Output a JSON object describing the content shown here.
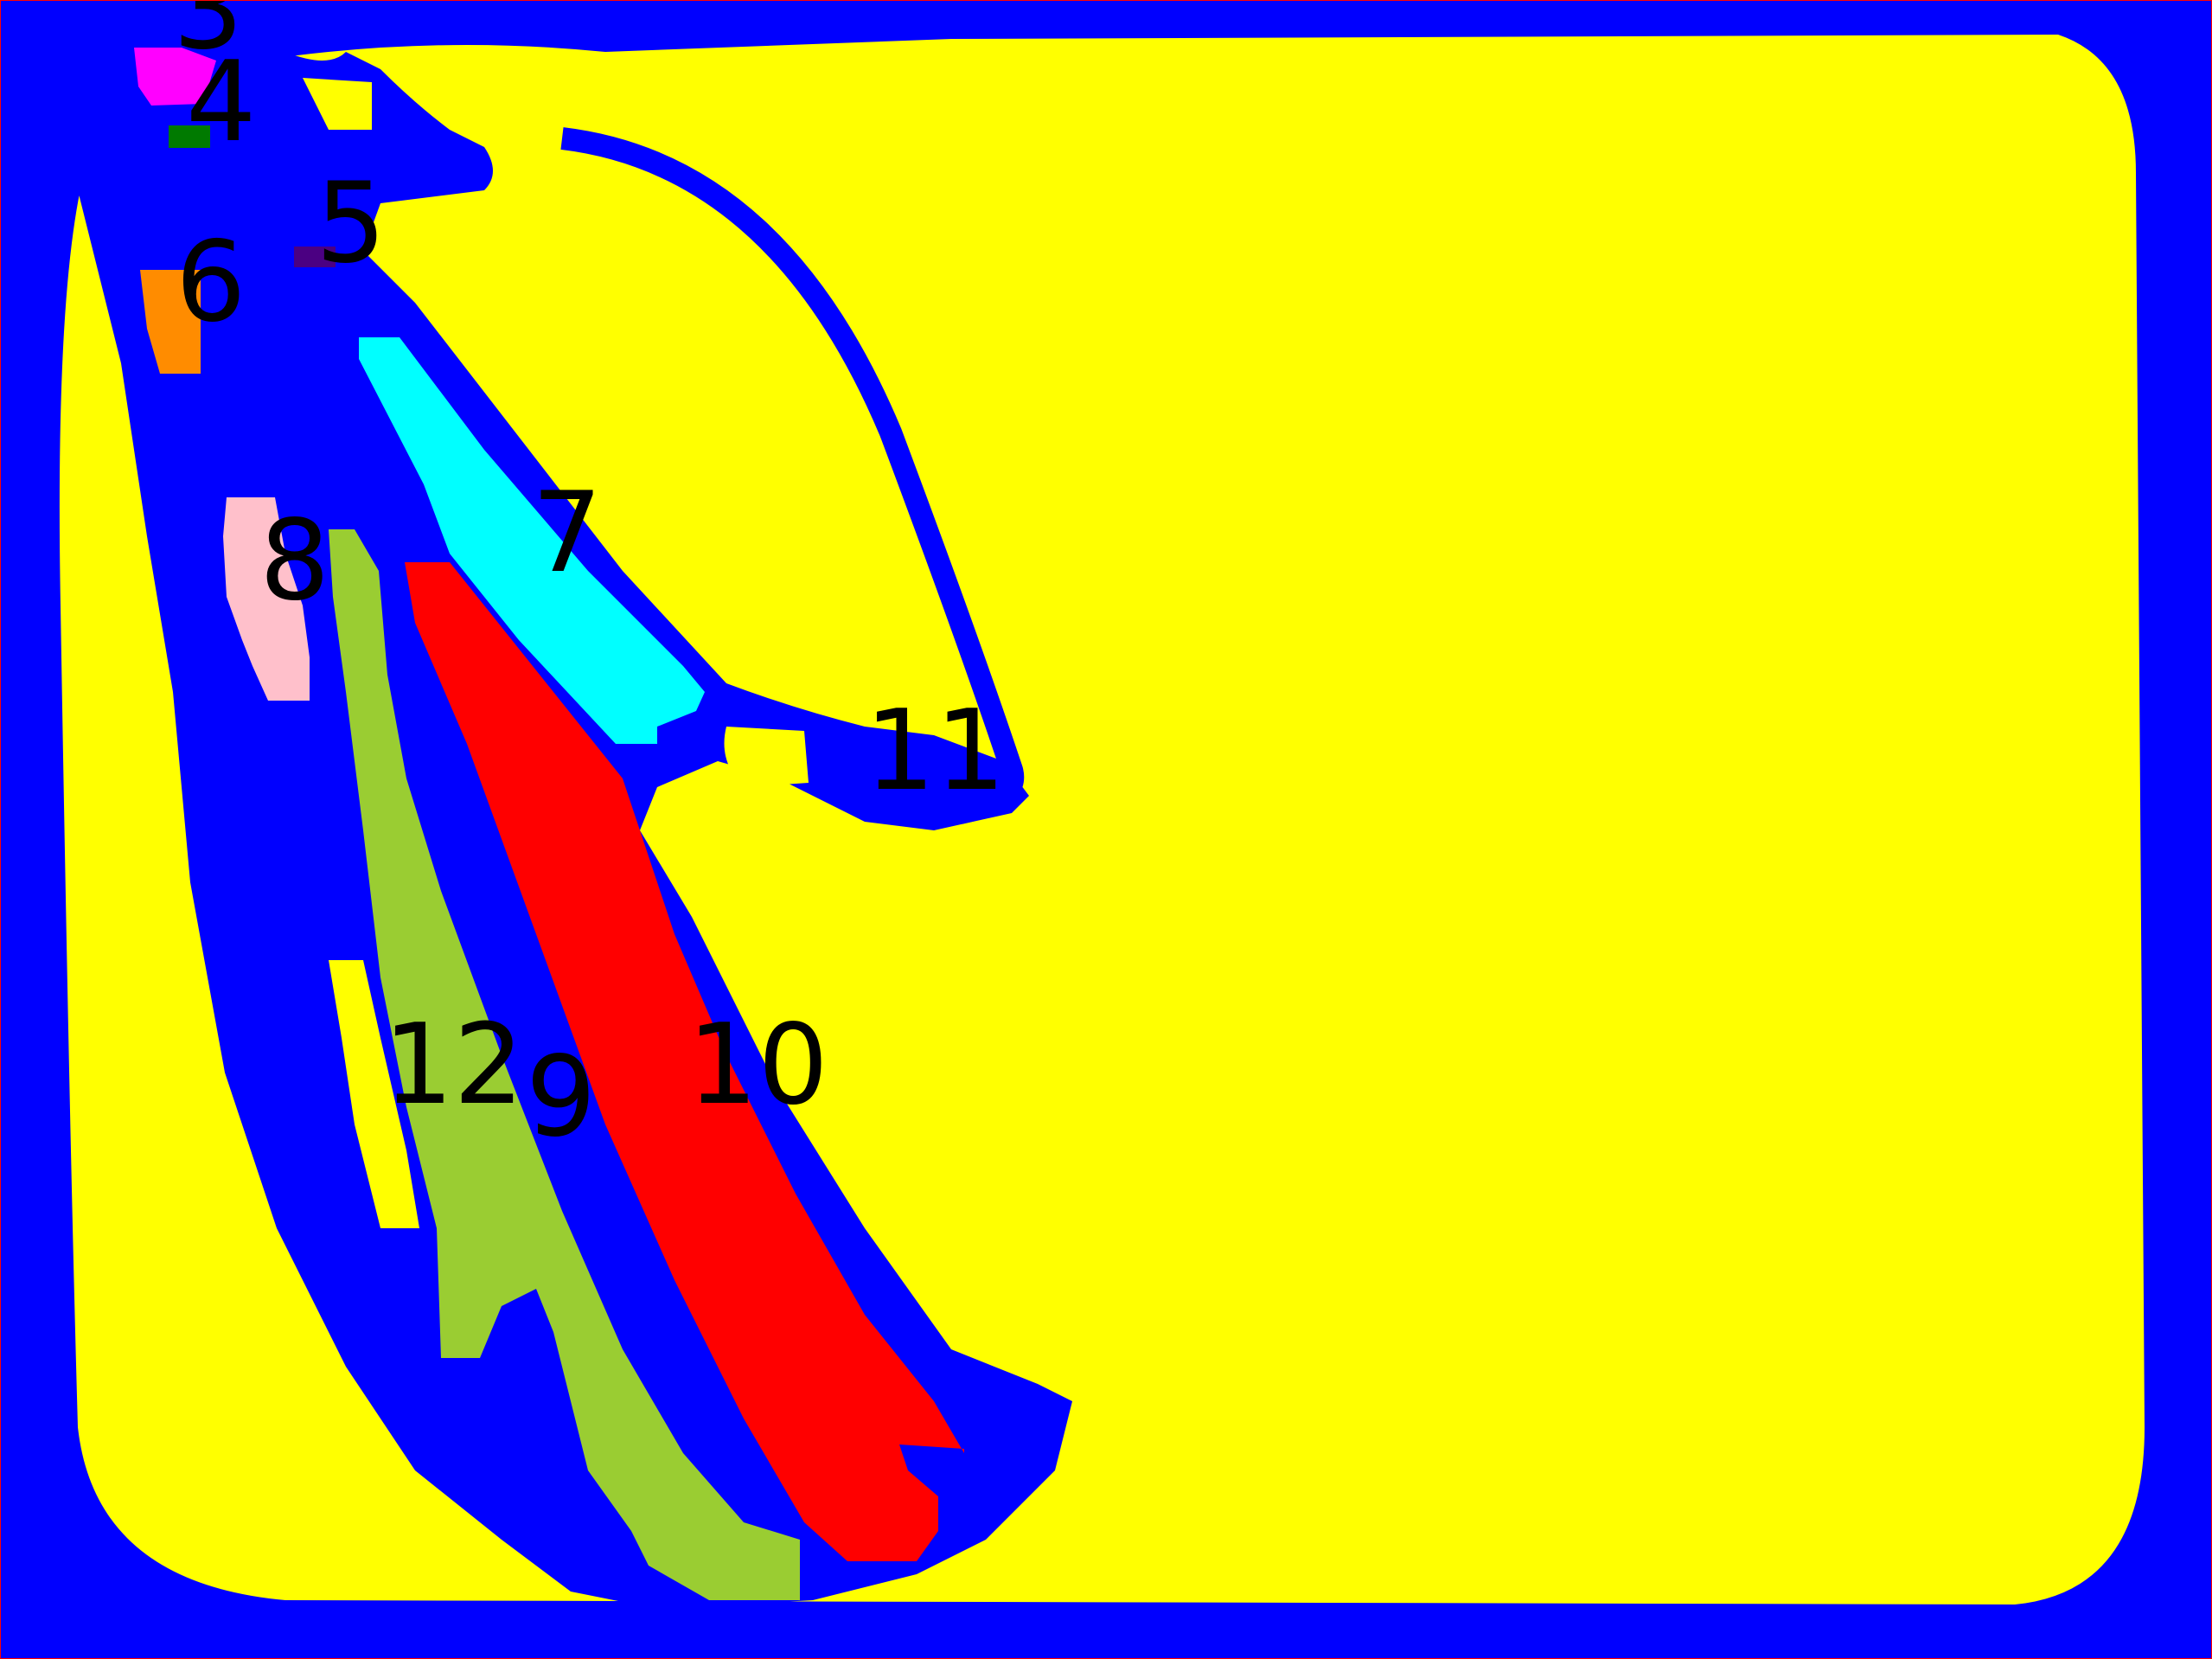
{
  "figure": {
    "type": "segmentation-map",
    "colors": {
      "background": "#ffff00",
      "outline": "#0000ff",
      "frame": "#ff0000"
    }
  },
  "regions": [
    {
      "id": "3",
      "label": "3",
      "color": "#ff00ff"
    },
    {
      "id": "4",
      "label": "4",
      "color": "#007a00"
    },
    {
      "id": "5",
      "label": "5",
      "color": "#4b0082"
    },
    {
      "id": "6",
      "label": "6",
      "color": "#ff8c00"
    },
    {
      "id": "7",
      "label": "7",
      "color": "#00ffff"
    },
    {
      "id": "8",
      "label": "8",
      "color": "#ffc0cb"
    },
    {
      "id": "9",
      "label": "9",
      "color": "#9acd32"
    },
    {
      "id": "10",
      "label": "10",
      "color": "#ff0000"
    },
    {
      "id": "11",
      "label": "11",
      "color": "#0000ff"
    },
    {
      "id": "12",
      "label": "12",
      "color": "#0000ff"
    }
  ]
}
